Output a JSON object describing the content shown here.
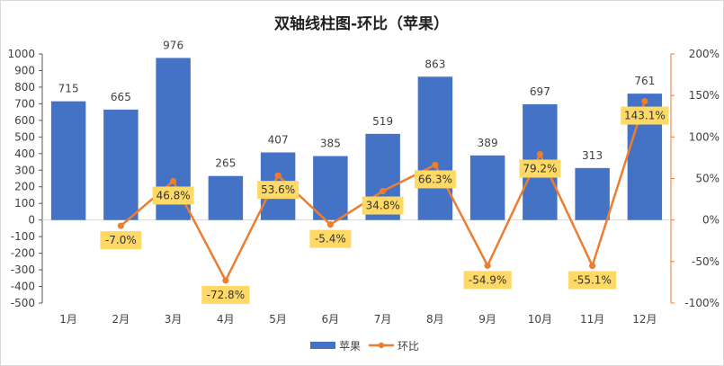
{
  "chart_data": {
    "type": "bar+line",
    "title": "双轴线柱图-环比（苹果）",
    "categories": [
      "1月",
      "2月",
      "3月",
      "4月",
      "5月",
      "6月",
      "7月",
      "8月",
      "9月",
      "10月",
      "11月",
      "12月"
    ],
    "series": [
      {
        "name": "苹果",
        "type": "bar",
        "axis": "left",
        "values": [
          715,
          665,
          976,
          265,
          407,
          385,
          519,
          863,
          389,
          697,
          313,
          761
        ],
        "value_labels": [
          "715",
          "665",
          "976",
          "265",
          "407",
          "385",
          "519",
          "863",
          "389",
          "697",
          "313",
          "761"
        ],
        "color": "#4472C4"
      },
      {
        "name": "环比",
        "type": "line",
        "axis": "right",
        "values": [
          null,
          -7.0,
          46.8,
          -72.8,
          53.6,
          -5.4,
          34.8,
          66.3,
          -54.9,
          79.2,
          -55.1,
          143.1
        ],
        "value_labels": [
          null,
          "-7.0%",
          "46.8%",
          "-72.8%",
          "53.6%",
          "-5.4%",
          "34.8%",
          "66.3%",
          "-54.9%",
          "79.2%",
          "-55.1%",
          "143.1%"
        ],
        "color": "#ED7D31",
        "label_bg": "#FFD966"
      }
    ],
    "left_axis": {
      "ylim": [
        -500,
        1000
      ],
      "ticks": [
        1000,
        900,
        800,
        700,
        600,
        500,
        400,
        300,
        200,
        100,
        0,
        -100,
        -200,
        -300,
        -400,
        -500
      ],
      "tick_labels": [
        "1000",
        "900",
        "800",
        "700",
        "600",
        "500",
        "400",
        "300",
        "200",
        "100",
        "0",
        "-100",
        "-200",
        "-300",
        "-400",
        "-500"
      ]
    },
    "right_axis": {
      "ylim": [
        -100,
        200
      ],
      "ticks": [
        200,
        150,
        100,
        50,
        0,
        -50,
        -100
      ],
      "tick_labels": [
        "200%",
        "150%",
        "100%",
        "50%",
        "0%",
        "-50%",
        "-100%"
      ],
      "color": "#ED7D31"
    },
    "grid": false,
    "legend_position": "bottom"
  }
}
